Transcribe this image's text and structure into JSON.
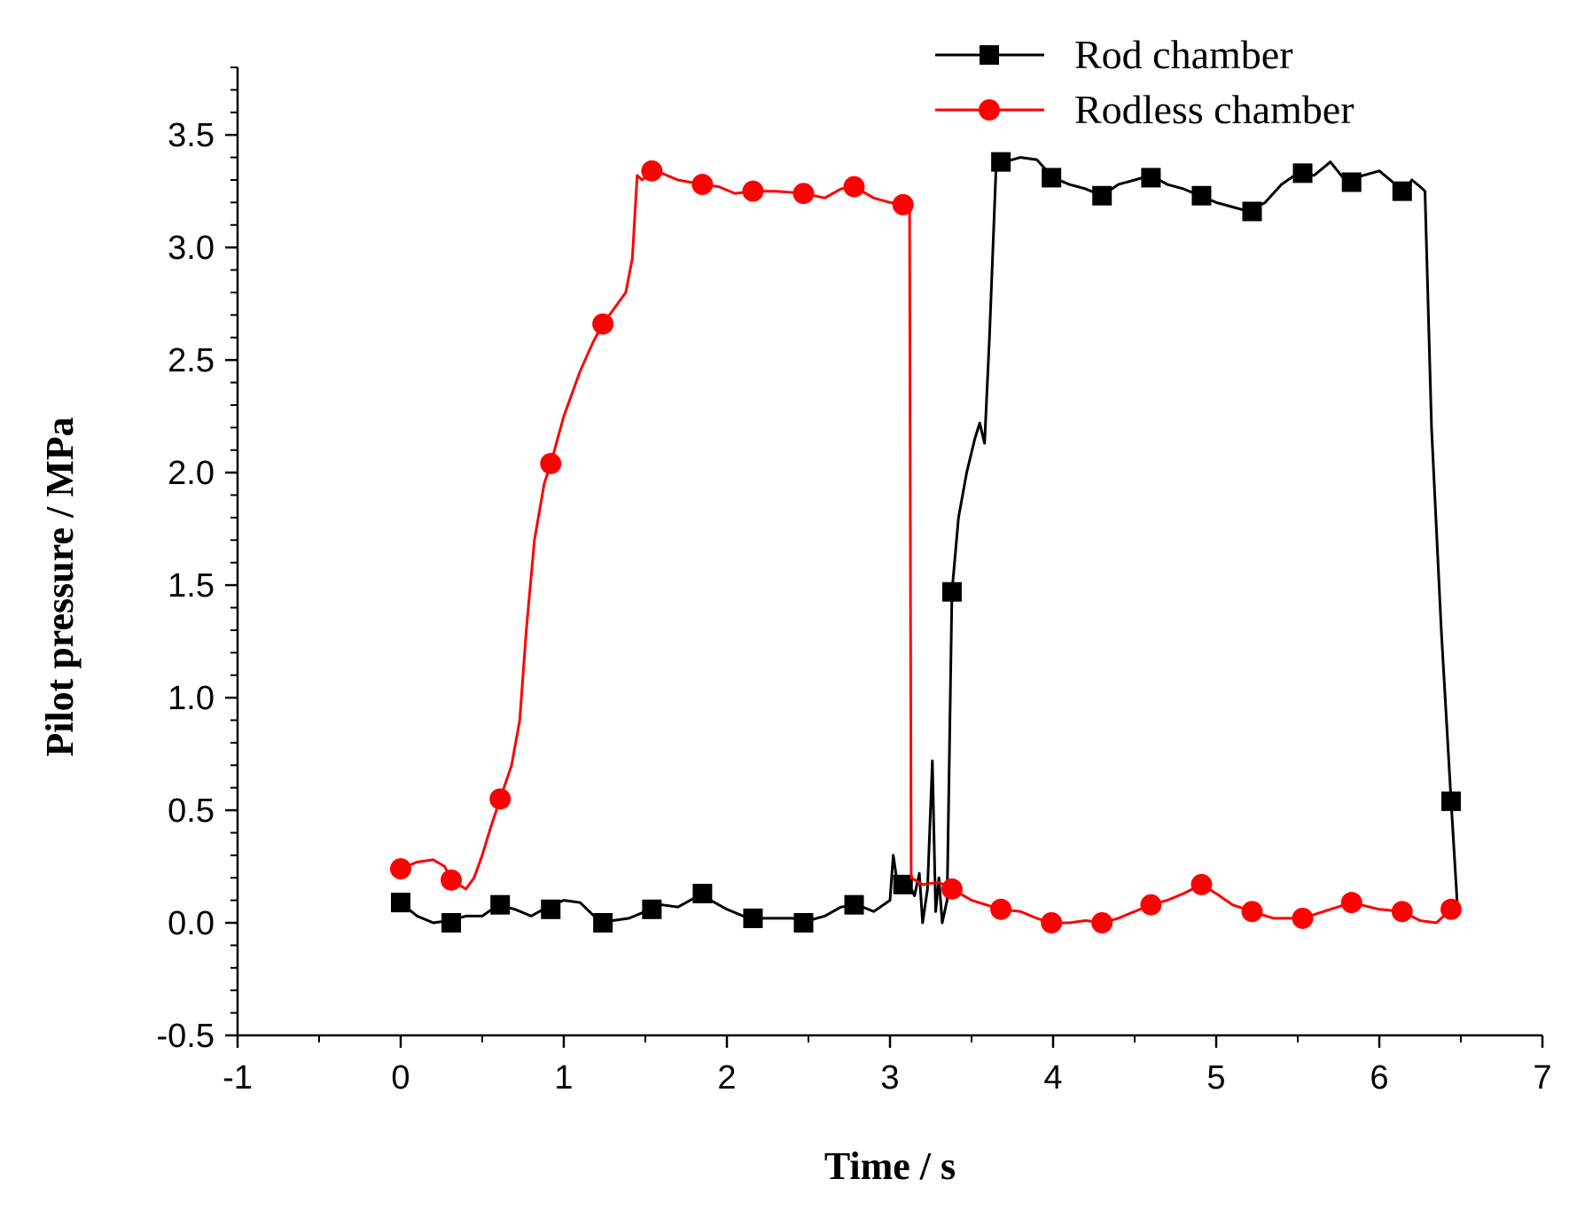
{
  "chart_data": {
    "type": "line",
    "xlabel": "Time / s",
    "ylabel": "Pilot pressure  / MPa",
    "xlim": [
      -1,
      7
    ],
    "ylim": [
      -0.5,
      3.8
    ],
    "xticks": [
      -1,
      0,
      1,
      2,
      3,
      4,
      5,
      6,
      7
    ],
    "xtick_labels": [
      "-1",
      "0",
      "1",
      "2",
      "3",
      "4",
      "5",
      "6",
      "7"
    ],
    "yticks": [
      -0.5,
      0.0,
      0.5,
      1.0,
      1.5,
      2.0,
      2.5,
      3.0,
      3.5
    ],
    "ytick_labels": [
      "-0.5",
      "0.0",
      "0.5",
      "1.0",
      "1.5",
      "2.0",
      "2.5",
      "3.0",
      "3.5"
    ],
    "legend_position": "top-right",
    "series": [
      {
        "name": "Rod chamber",
        "color": "#000000",
        "marker": "square",
        "line": [
          [
            0.0,
            0.09
          ],
          [
            0.1,
            0.03
          ],
          [
            0.2,
            0.0
          ],
          [
            0.3,
            0.01
          ],
          [
            0.4,
            0.03
          ],
          [
            0.5,
            0.03
          ],
          [
            0.6,
            0.08
          ],
          [
            0.7,
            0.06
          ],
          [
            0.8,
            0.03
          ],
          [
            0.9,
            0.07
          ],
          [
            1.0,
            0.1
          ],
          [
            1.1,
            0.09
          ],
          [
            1.2,
            0.02
          ],
          [
            1.3,
            0.01
          ],
          [
            1.4,
            0.02
          ],
          [
            1.5,
            0.05
          ],
          [
            1.6,
            0.08
          ],
          [
            1.7,
            0.07
          ],
          [
            1.8,
            0.11
          ],
          [
            1.85,
            0.13
          ],
          [
            1.9,
            0.1
          ],
          [
            2.0,
            0.06
          ],
          [
            2.1,
            0.03
          ],
          [
            2.2,
            0.02
          ],
          [
            2.3,
            0.02
          ],
          [
            2.4,
            0.02
          ],
          [
            2.5,
            0.01
          ],
          [
            2.6,
            0.03
          ],
          [
            2.7,
            0.07
          ],
          [
            2.8,
            0.08
          ],
          [
            2.9,
            0.05
          ],
          [
            3.0,
            0.1
          ],
          [
            3.02,
            0.3
          ],
          [
            3.05,
            0.15
          ],
          [
            3.1,
            0.2
          ],
          [
            3.15,
            0.12
          ],
          [
            3.18,
            0.22
          ],
          [
            3.2,
            0.0
          ],
          [
            3.23,
            0.15
          ],
          [
            3.26,
            0.72
          ],
          [
            3.28,
            0.05
          ],
          [
            3.3,
            0.2
          ],
          [
            3.32,
            0.0
          ],
          [
            3.35,
            0.1
          ],
          [
            3.38,
            1.47
          ],
          [
            3.42,
            1.8
          ],
          [
            3.47,
            2.0
          ],
          [
            3.52,
            2.15
          ],
          [
            3.55,
            2.22
          ],
          [
            3.58,
            2.13
          ],
          [
            3.61,
            2.6
          ],
          [
            3.65,
            3.35
          ],
          [
            3.7,
            3.38
          ],
          [
            3.8,
            3.4
          ],
          [
            3.9,
            3.39
          ],
          [
            4.0,
            3.31
          ],
          [
            4.1,
            3.28
          ],
          [
            4.2,
            3.26
          ],
          [
            4.3,
            3.23
          ],
          [
            4.4,
            3.28
          ],
          [
            4.5,
            3.3
          ],
          [
            4.6,
            3.32
          ],
          [
            4.7,
            3.28
          ],
          [
            4.8,
            3.26
          ],
          [
            4.9,
            3.23
          ],
          [
            5.0,
            3.2
          ],
          [
            5.1,
            3.18
          ],
          [
            5.2,
            3.16
          ],
          [
            5.3,
            3.2
          ],
          [
            5.4,
            3.28
          ],
          [
            5.5,
            3.33
          ],
          [
            5.6,
            3.32
          ],
          [
            5.7,
            3.38
          ],
          [
            5.8,
            3.29
          ],
          [
            5.9,
            3.32
          ],
          [
            6.0,
            3.34
          ],
          [
            6.1,
            3.28
          ],
          [
            6.15,
            3.25
          ],
          [
            6.2,
            3.3
          ],
          [
            6.25,
            3.27
          ],
          [
            6.28,
            3.25
          ],
          [
            6.32,
            2.2
          ],
          [
            6.38,
            1.3
          ],
          [
            6.44,
            0.54
          ],
          [
            6.48,
            0.06
          ]
        ],
        "markers": [
          [
            0.0,
            0.09
          ],
          [
            0.31,
            0.0
          ],
          [
            0.61,
            0.08
          ],
          [
            0.92,
            0.06
          ],
          [
            1.24,
            0.0
          ],
          [
            1.54,
            0.06
          ],
          [
            1.85,
            0.13
          ],
          [
            2.16,
            0.02
          ],
          [
            2.47,
            0.0
          ],
          [
            2.78,
            0.08
          ],
          [
            3.08,
            0.17
          ],
          [
            3.38,
            1.47
          ],
          [
            3.68,
            3.38
          ],
          [
            3.99,
            3.31
          ],
          [
            4.3,
            3.23
          ],
          [
            4.6,
            3.31
          ],
          [
            4.91,
            3.23
          ],
          [
            5.22,
            3.16
          ],
          [
            5.53,
            3.33
          ],
          [
            5.83,
            3.29
          ],
          [
            6.14,
            3.25
          ],
          [
            6.44,
            0.54
          ]
        ]
      },
      {
        "name": "Rodless chamber",
        "color": "#ff0000",
        "marker": "circle",
        "line": [
          [
            0.0,
            0.24
          ],
          [
            0.1,
            0.27
          ],
          [
            0.2,
            0.28
          ],
          [
            0.27,
            0.25
          ],
          [
            0.31,
            0.19
          ],
          [
            0.4,
            0.15
          ],
          [
            0.45,
            0.2
          ],
          [
            0.5,
            0.3
          ],
          [
            0.55,
            0.42
          ],
          [
            0.61,
            0.55
          ],
          [
            0.68,
            0.7
          ],
          [
            0.73,
            0.9
          ],
          [
            0.77,
            1.3
          ],
          [
            0.82,
            1.7
          ],
          [
            0.88,
            1.95
          ],
          [
            0.92,
            2.04
          ],
          [
            1.0,
            2.25
          ],
          [
            1.1,
            2.45
          ],
          [
            1.18,
            2.58
          ],
          [
            1.24,
            2.66
          ],
          [
            1.3,
            2.72
          ],
          [
            1.38,
            2.8
          ],
          [
            1.42,
            2.95
          ],
          [
            1.45,
            3.32
          ],
          [
            1.48,
            3.3
          ],
          [
            1.54,
            3.34
          ],
          [
            1.6,
            3.33
          ],
          [
            1.7,
            3.3
          ],
          [
            1.85,
            3.28
          ],
          [
            1.95,
            3.27
          ],
          [
            2.05,
            3.24
          ],
          [
            2.16,
            3.25
          ],
          [
            2.3,
            3.25
          ],
          [
            2.47,
            3.24
          ],
          [
            2.6,
            3.22
          ],
          [
            2.7,
            3.26
          ],
          [
            2.78,
            3.27
          ],
          [
            2.9,
            3.22
          ],
          [
            3.0,
            3.2
          ],
          [
            3.08,
            3.19
          ],
          [
            3.12,
            3.16
          ],
          [
            3.13,
            0.2
          ],
          [
            3.2,
            0.17
          ],
          [
            3.3,
            0.18
          ],
          [
            3.38,
            0.15
          ],
          [
            3.5,
            0.1
          ],
          [
            3.68,
            0.06
          ],
          [
            3.8,
            0.05
          ],
          [
            3.9,
            0.02
          ],
          [
            3.99,
            0.0
          ],
          [
            4.1,
            0.0
          ],
          [
            4.2,
            0.01
          ],
          [
            4.3,
            0.0
          ],
          [
            4.4,
            0.02
          ],
          [
            4.5,
            0.05
          ],
          [
            4.6,
            0.08
          ],
          [
            4.7,
            0.1
          ],
          [
            4.8,
            0.13
          ],
          [
            4.91,
            0.17
          ],
          [
            5.0,
            0.13
          ],
          [
            5.1,
            0.08
          ],
          [
            5.22,
            0.05
          ],
          [
            5.35,
            0.02
          ],
          [
            5.53,
            0.02
          ],
          [
            5.7,
            0.06
          ],
          [
            5.83,
            0.09
          ],
          [
            6.0,
            0.06
          ],
          [
            6.14,
            0.05
          ],
          [
            6.25,
            0.01
          ],
          [
            6.35,
            0.0
          ],
          [
            6.44,
            0.06
          ],
          [
            6.48,
            0.06
          ]
        ],
        "markers": [
          [
            0.0,
            0.24
          ],
          [
            0.31,
            0.19
          ],
          [
            0.61,
            0.55
          ],
          [
            0.92,
            2.04
          ],
          [
            1.24,
            2.66
          ],
          [
            1.54,
            3.34
          ],
          [
            1.85,
            3.28
          ],
          [
            2.16,
            3.25
          ],
          [
            2.47,
            3.24
          ],
          [
            2.78,
            3.27
          ],
          [
            3.08,
            3.19
          ],
          [
            3.38,
            0.15
          ],
          [
            3.68,
            0.06
          ],
          [
            3.99,
            0.0
          ],
          [
            4.3,
            0.0
          ],
          [
            4.6,
            0.08
          ],
          [
            4.91,
            0.17
          ],
          [
            5.22,
            0.05
          ],
          [
            5.53,
            0.02
          ],
          [
            5.83,
            0.09
          ],
          [
            6.14,
            0.05
          ],
          [
            6.44,
            0.06
          ]
        ]
      }
    ]
  }
}
